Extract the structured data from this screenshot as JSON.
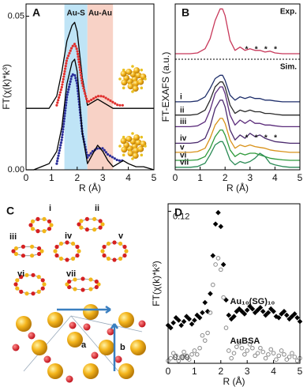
{
  "chart_data": [
    {
      "type": "line",
      "panel": "A",
      "ylabel": "FT(χ(k)*k³)",
      "xlabel": "R (Å)",
      "x": [
        0,
        0.3,
        0.6,
        0.9,
        1.2,
        1.4,
        1.6,
        1.8,
        1.9,
        2.0,
        2.2,
        2.4,
        2.6,
        2.8,
        3.0,
        3.2,
        3.4,
        3.6,
        3.8,
        4.0,
        4.3,
        4.6,
        5.0
      ],
      "xlim": [
        0,
        5
      ],
      "xticks": [
        0,
        1,
        2,
        3,
        4,
        5
      ],
      "ylim": [
        0,
        0.054
      ],
      "yticks": [
        {
          "value": 0,
          "label": "0.00"
        },
        {
          "value": 0.05,
          "label": "0.05"
        }
      ],
      "regions": [
        {
          "label": "Au-S",
          "range": [
            1.5,
            2.4
          ],
          "color": "#bfe4f6"
        },
        {
          "label": "Au-Au",
          "range": [
            2.4,
            3.4
          ],
          "color": "#f8d2c6"
        }
      ],
      "series": [
        {
          "color": "#000000",
          "style": "line",
          "values": [
            0.02,
            0.02,
            0.02,
            0.02,
            0.024,
            0.032,
            0.042,
            0.047,
            0.048,
            0.045,
            0.03,
            0.021,
            0.022,
            0.023,
            0.022,
            0.021,
            0.02,
            0.02,
            0.02,
            0.02,
            0.02,
            0.02,
            0.02
          ]
        },
        {
          "color": "#e0302e",
          "style": "dotted",
          "values": [
            null,
            null,
            null,
            null,
            0.021,
            0.027,
            0.036,
            0.04,
            0.041,
            0.039,
            0.028,
            0.022,
            0.023,
            0.024,
            0.024,
            0.023,
            0.022,
            0.021,
            0.021,
            null,
            null,
            null,
            null
          ]
        },
        {
          "color": "#2b2f9a",
          "style": "dotted",
          "values": [
            null,
            null,
            null,
            null,
            0.002,
            0.01,
            0.024,
            0.031,
            0.031,
            0.028,
            0.012,
            0.004,
            0.006,
            0.007,
            0.007,
            0.005,
            0.004,
            0.003,
            0.003,
            null,
            null,
            null,
            null
          ]
        },
        {
          "color": "#000000",
          "style": "line",
          "values": [
            0.0,
            0.0,
            0.001,
            0.002,
            0.006,
            0.014,
            0.028,
            0.035,
            0.036,
            0.032,
            0.012,
            0.002,
            0.005,
            0.008,
            0.006,
            0.003,
            0.001,
            0.002,
            0.003,
            0.002,
            0.001,
            0.001,
            0.0
          ]
        }
      ]
    },
    {
      "type": "line",
      "panel": "B",
      "ylabel": "FT-EXAFS (a.u.)",
      "xlabel": "R (Å)",
      "x": [
        0,
        0.3,
        0.6,
        0.9,
        1.2,
        1.4,
        1.6,
        1.8,
        1.9,
        2.0,
        2.2,
        2.4,
        2.6,
        2.8,
        3.0,
        3.2,
        3.4,
        3.6,
        3.8,
        4.0,
        4.3,
        4.6,
        5.0
      ],
      "xlim": [
        0,
        5
      ],
      "xticks": [
        0,
        1,
        2,
        3,
        4,
        5
      ],
      "ylim": [
        0,
        10
      ],
      "annotations": [
        "Sim.",
        "*   *   *   *",
        "*   *   *   *"
      ],
      "series": [
        {
          "name": "Exp.",
          "color": "#c8385a",
          "style": "line",
          "values": [
            7.0,
            7.0,
            7.0,
            7.05,
            7.3,
            7.9,
            9.0,
            9.7,
            9.7,
            9.3,
            7.8,
            7.2,
            7.4,
            7.2,
            7.3,
            7.2,
            7.2,
            7.1,
            7.15,
            7.05,
            7.0,
            7.0,
            7.0
          ]
        },
        {
          "name": "i",
          "color": "#1f2f6b",
          "style": "line",
          "values": [
            4.1,
            4.1,
            4.1,
            4.15,
            4.4,
            4.9,
            5.5,
            5.7,
            5.7,
            5.4,
            4.5,
            4.2,
            4.4,
            4.3,
            4.4,
            4.3,
            4.3,
            4.2,
            4.2,
            4.15,
            4.1,
            4.1,
            4.1
          ]
        },
        {
          "name": "ii",
          "color": "#2a2a2a",
          "style": "line",
          "values": [
            3.3,
            3.3,
            3.3,
            3.35,
            3.6,
            4.2,
            5.0,
            5.3,
            5.3,
            5.0,
            3.9,
            3.4,
            3.6,
            3.5,
            3.6,
            3.5,
            3.5,
            3.4,
            3.4,
            3.35,
            3.3,
            3.3,
            3.3
          ]
        },
        {
          "name": "iii",
          "color": "#5a2a7a",
          "style": "line",
          "values": [
            2.6,
            2.6,
            2.6,
            2.65,
            2.9,
            3.6,
            4.6,
            5.0,
            5.0,
            4.6,
            3.3,
            2.7,
            3.0,
            2.8,
            3.0,
            2.8,
            2.8,
            2.7,
            2.7,
            2.65,
            2.6,
            2.6,
            2.6
          ]
        },
        {
          "name": "iv",
          "color": "#4b2a6e",
          "style": "line",
          "values": [
            1.6,
            1.6,
            1.6,
            1.65,
            1.9,
            2.6,
            3.7,
            4.2,
            4.2,
            3.8,
            2.4,
            1.8,
            2.1,
            1.9,
            2.2,
            2.0,
            2.1,
            1.9,
            1.8,
            1.7,
            1.65,
            1.6,
            1.6
          ]
        },
        {
          "name": "v",
          "color": "#d9921a",
          "style": "line",
          "values": [
            1.05,
            1.05,
            1.05,
            1.1,
            1.3,
            1.9,
            2.7,
            3.1,
            3.1,
            2.8,
            1.8,
            1.3,
            1.5,
            1.4,
            1.5,
            1.4,
            1.35,
            1.3,
            1.2,
            1.15,
            1.1,
            1.05,
            1.05
          ]
        },
        {
          "name": "vi",
          "color": "#2e9a3a",
          "style": "line",
          "values": [
            0.57,
            0.57,
            0.57,
            0.6,
            0.8,
            1.3,
            2.0,
            2.4,
            2.4,
            2.1,
            1.2,
            0.8,
            1.0,
            0.9,
            1.0,
            1.0,
            0.9,
            0.8,
            0.7,
            0.65,
            0.6,
            0.57,
            0.57
          ]
        },
        {
          "name": "vii",
          "color": "#2a8a55",
          "style": "line",
          "values": [
            0.15,
            0.15,
            0.15,
            0.2,
            0.4,
            0.9,
            1.5,
            1.7,
            1.7,
            1.4,
            0.6,
            0.3,
            0.5,
            0.4,
            0.5,
            0.7,
            1.0,
            0.8,
            0.4,
            0.3,
            0.2,
            0.15,
            0.15
          ]
        }
      ]
    },
    {
      "type": "scatter",
      "panel": "D",
      "ylabel": "FT(χ(k)*k³)",
      "xlabel": "R (Å)",
      "x": [
        0,
        0.1,
        0.2,
        0.3,
        0.4,
        0.5,
        0.6,
        0.7,
        0.8,
        0.9,
        1.0,
        1.1,
        1.2,
        1.3,
        1.4,
        1.5,
        1.6,
        1.7,
        1.8,
        1.9,
        2.0,
        2.1,
        2.2,
        2.3,
        2.4,
        2.5,
        2.6,
        2.7,
        2.8,
        2.9,
        3.0,
        3.1,
        3.2,
        3.3,
        3.4,
        3.5,
        3.6,
        3.7,
        3.8,
        3.9,
        4.0,
        4.1,
        4.2,
        4.3,
        4.4,
        4.5,
        4.6,
        4.7,
        4.8,
        4.9,
        5.0
      ],
      "xlim": [
        0,
        5
      ],
      "xticks": [
        0,
        1,
        2,
        3,
        4,
        5
      ],
      "ylim": [
        0,
        0.126
      ],
      "yticks": [
        {
          "value": 0,
          "label": "0.00"
        },
        {
          "value": 0.12,
          "label": "0.12"
        }
      ],
      "series": [
        {
          "name": "Au₁₀(SG)₁₀",
          "color": "#000000",
          "marker": "diamond",
          "values": [
            0.03,
            0.028,
            0.032,
            0.036,
            0.034,
            0.03,
            0.033,
            0.037,
            0.035,
            0.031,
            0.034,
            0.038,
            0.036,
            0.04,
            0.048,
            0.041,
            0.055,
            0.085,
            0.11,
            0.119,
            0.108,
            0.078,
            0.05,
            0.038,
            0.035,
            0.037,
            0.041,
            0.043,
            0.041,
            0.039,
            0.042,
            0.045,
            0.043,
            0.04,
            0.042,
            0.044,
            0.041,
            0.038,
            0.04,
            0.043,
            0.041,
            0.037,
            0.036,
            0.039,
            0.041,
            0.038,
            0.035,
            0.037,
            0.039,
            0.036,
            0.033
          ]
        },
        {
          "name": "AuBSA",
          "color": "#8a8a8a",
          "marker": "circle",
          "values": [
            0.002,
            0.004,
            0.008,
            0.006,
            0.002,
            0.005,
            0.009,
            0.006,
            0.003,
            0.007,
            0.01,
            0.007,
            0.012,
            0.022,
            0.018,
            0.024,
            0.04,
            0.062,
            0.078,
            0.083,
            0.074,
            0.052,
            0.028,
            0.01,
            0.004,
            0.008,
            0.013,
            0.016,
            0.012,
            0.007,
            0.01,
            0.015,
            0.012,
            0.006,
            0.008,
            0.012,
            0.009,
            0.004,
            0.007,
            0.011,
            0.008,
            0.003,
            0.006,
            0.01,
            0.007,
            0.003,
            0.005,
            0.008,
            0.005,
            0.002,
            0.004
          ]
        }
      ]
    }
  ],
  "figure_c": {
    "panel": "C",
    "structures": [
      "i",
      "ii",
      "iii",
      "iv",
      "v",
      "vi",
      "vii"
    ],
    "cell_labels": [
      "a",
      "b"
    ]
  }
}
